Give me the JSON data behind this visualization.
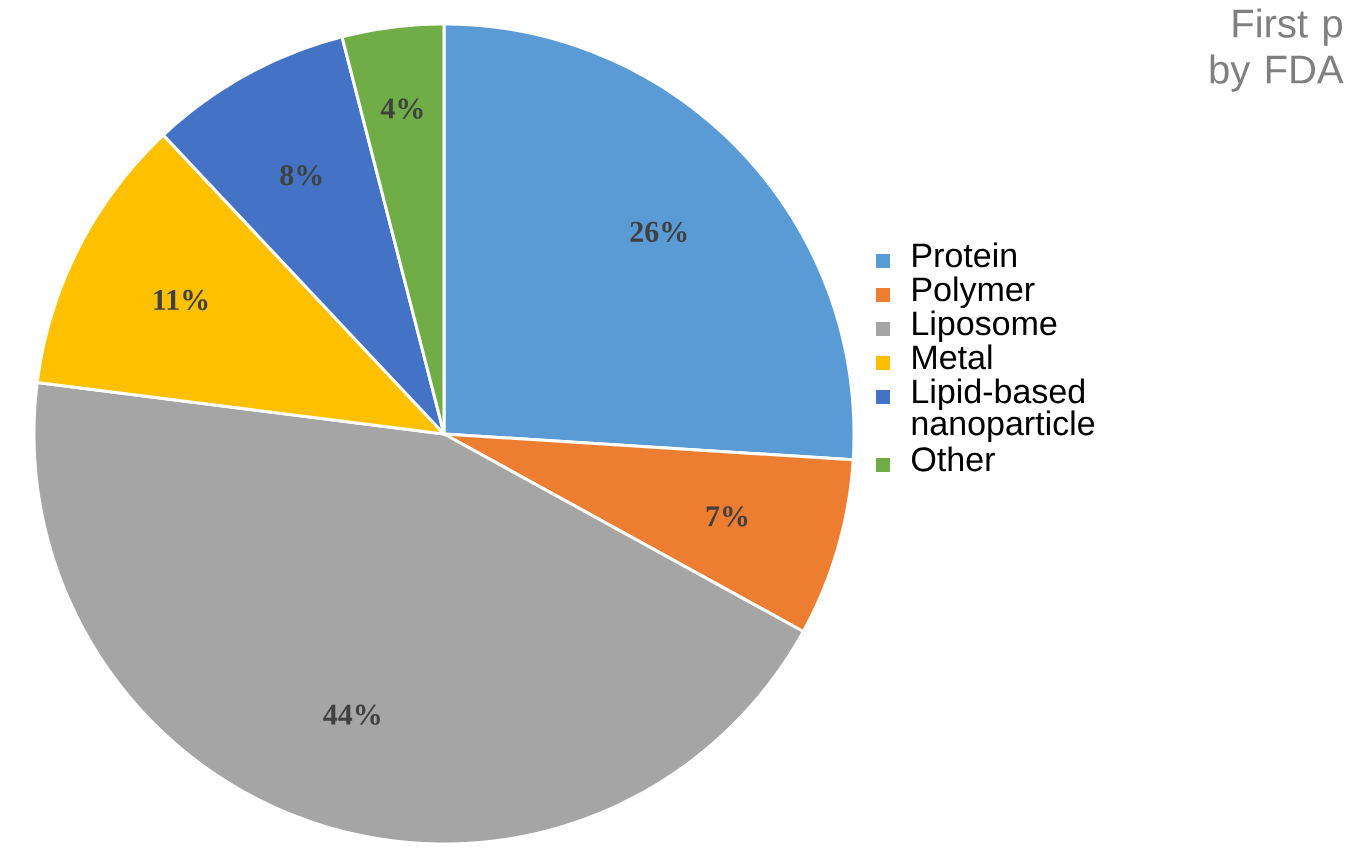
{
  "chart_data": {
    "type": "pie",
    "title": "First p by FDA",
    "categories": [
      "Protein",
      "Polymer",
      "Liposome",
      "Metal",
      "Lipid-based nanoparticle",
      "Other"
    ],
    "values": [
      26,
      7,
      44,
      11,
      8,
      4
    ],
    "colors": [
      "#5b9bd5",
      "#ed7d31",
      "#a5a5a5",
      "#ffc000",
      "#4472c4",
      "#70ad47"
    ],
    "value_labels": [
      "26%",
      "7%",
      "44%",
      "11%",
      "8%",
      "4%"
    ],
    "legend": "right"
  }
}
